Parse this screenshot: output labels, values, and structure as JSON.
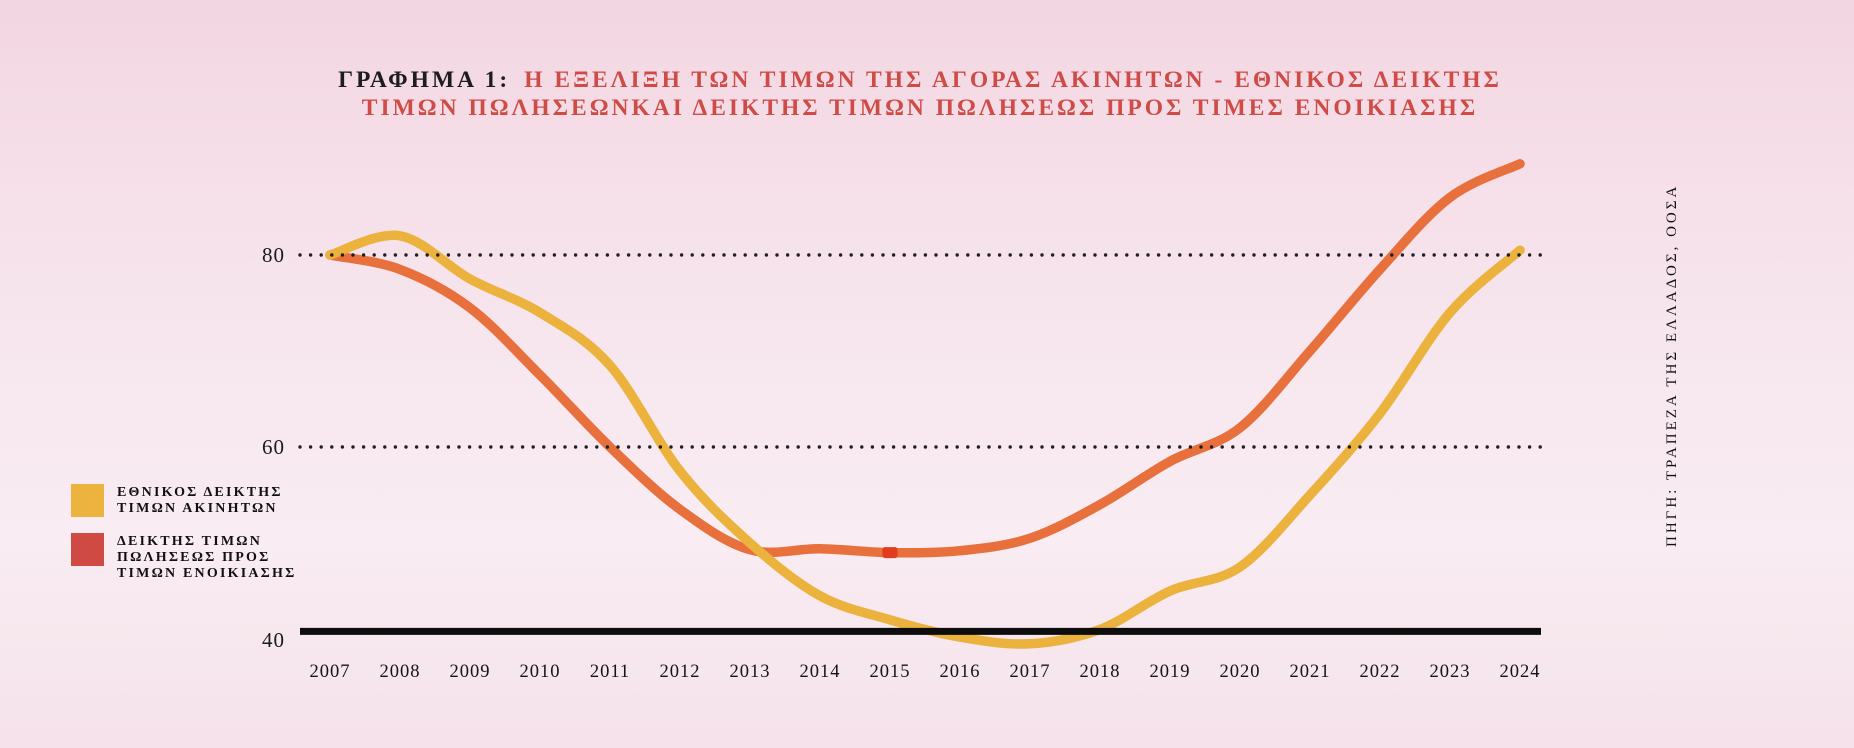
{
  "title": {
    "prefix": "ΓΡΑΦΗΜΑ 1:",
    "line1": "Η ΕΞΕΛΙΞΗ ΤΩΝ ΤΙΜΩΝ ΤΗΣ ΑΓΟΡΑΣ ΑΚΙΝΗΤΩΝ - ΕΘΝΙΚΟΣ ΔΕΙΚΤΗΣ",
    "line2": "ΤΙΜΩΝ ΠΩΛΗΣΕΩΝΚΑΙ ΔΕΙΚΤΗΣ ΤΙΜΩΝ ΠΩΛΗΣΕΩΣ ΠΡΟΣ ΤΙΜΕΣ ΕΝΟΙΚΙΑΣΗΣ",
    "accent_color": "#ce4b46"
  },
  "source": "ΠΗΓΗ: ΤΡΑΠΕΖΑ ΤΗΣ ΕΛΛΑΔΟΣ, ΟΟΣΑ",
  "legend": [
    {
      "lines": [
        "ΕΘΝΙΚΟΣ ΔΕΙΚΤΗΣ",
        "ΤΙΜΩΝ ΑΚΙΝΗΤΩΝ"
      ],
      "color": "#ecb43e"
    },
    {
      "lines": [
        "ΔΕΙΚΤΗΣ ΤΙΜΩΝ",
        "ΠΩΛΗΣΕΩΣ ΠΡΟΣ",
        "ΤΙΜΩΝ ΕΝΟΙΚΙΑΣΗΣ"
      ],
      "color": "#ce4a43"
    }
  ],
  "chart_data": {
    "type": "line",
    "x": [
      2007,
      2008,
      2009,
      2010,
      2011,
      2012,
      2013,
      2014,
      2015,
      2016,
      2017,
      2018,
      2019,
      2020,
      2021,
      2022,
      2023,
      2024
    ],
    "series": [
      {
        "name": "ΕΘΝΙΚΟΣ ΔΕΙΚΤΗΣ ΤΙΜΩΝ ΑΚΙΝΗΤΩΝ",
        "color": "#ebb23d",
        "values": [
          80,
          82,
          77.5,
          74,
          68.5,
          57.5,
          50,
          44.5,
          42,
          40.2,
          39.5,
          41,
          45,
          47.5,
          55,
          63.5,
          74,
          80.5
        ]
      },
      {
        "name": "ΔΕΙΚΤΗΣ ΤΙΜΩΝ ΠΩΛΗΣΕΩΣ ΠΡΟΣ ΤΙΜΩΝ ΕΝΟΙΚΙΑΣΗΣ",
        "color": "#e8703c",
        "values": [
          80,
          78.5,
          74.5,
          67.5,
          60,
          53.5,
          49.3,
          49.4,
          49,
          49.2,
          50.5,
          54,
          58.5,
          62,
          70,
          78.5,
          86,
          89.5
        ],
        "marker": {
          "year": 2015,
          "value": 49,
          "color": "#e23c20"
        }
      }
    ],
    "ytick_labels": [
      "80",
      "60",
      "40"
    ],
    "yticks": [
      80,
      60,
      40
    ],
    "gridlines_dotted": [
      80,
      60
    ],
    "baseline_value": 40.8,
    "ylim": [
      38,
      92
    ],
    "legend_position": "left",
    "grid": "dotted horizontal black"
  }
}
